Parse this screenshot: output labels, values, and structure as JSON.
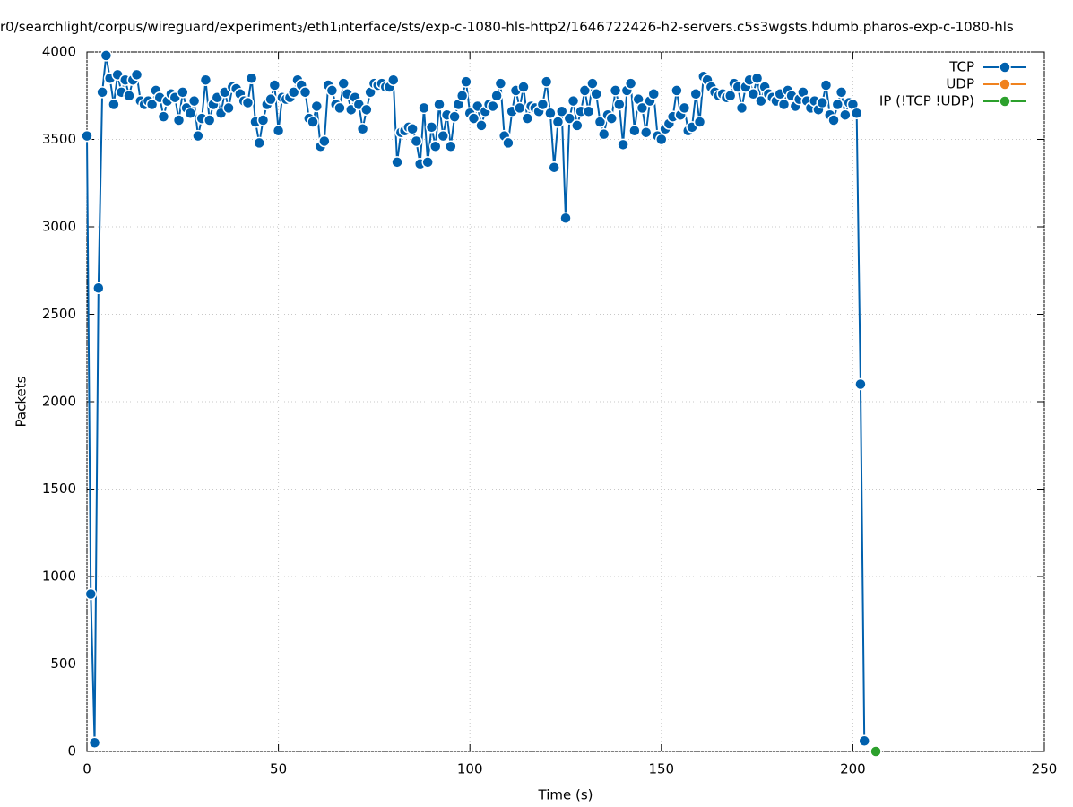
{
  "chart_data": {
    "type": "line",
    "title": [
      "r0/searchlight/corpus/wireguard/experiment",
      "3",
      "/eth1",
      "i",
      "nterface/sts/exp-c-1080-hls-http2/1646722426-h2-servers.c5s3wgsts.hdumb.pharos-exp-c-1080-hls"
    ],
    "xlabel": "Time (s)",
    "ylabel": "Packets",
    "xlim": [
      0,
      250
    ],
    "xticks": [
      0,
      50,
      100,
      150,
      200,
      250
    ],
    "ylim": [
      0,
      4000
    ],
    "yticks": [
      0,
      500,
      1000,
      1500,
      2000,
      2500,
      3000,
      3500,
      4000
    ],
    "grid": true,
    "legend": "top-right",
    "series": [
      {
        "name": "TCP",
        "color": "#0060ad",
        "x": [
          0,
          1,
          2,
          3,
          4,
          5,
          6,
          7,
          8,
          9,
          10,
          11,
          12,
          13,
          14,
          15,
          16,
          17,
          18,
          19,
          20,
          21,
          22,
          23,
          24,
          25,
          26,
          27,
          28,
          29,
          30,
          31,
          32,
          33,
          34,
          35,
          36,
          37,
          38,
          39,
          40,
          41,
          42,
          43,
          44,
          45,
          46,
          47,
          48,
          49,
          50,
          51,
          52,
          53,
          54,
          55,
          56,
          57,
          58,
          59,
          60,
          61,
          62,
          63,
          64,
          65,
          66,
          67,
          68,
          69,
          70,
          71,
          72,
          73,
          74,
          75,
          76,
          77,
          78,
          79,
          80,
          81,
          82,
          83,
          84,
          85,
          86,
          87,
          88,
          89,
          90,
          91,
          92,
          93,
          94,
          95,
          96,
          97,
          98,
          99,
          100,
          101,
          102,
          103,
          104,
          105,
          106,
          107,
          108,
          109,
          110,
          111,
          112,
          113,
          114,
          115,
          116,
          117,
          118,
          119,
          120,
          121,
          122,
          123,
          124,
          125,
          126,
          127,
          128,
          129,
          130,
          131,
          132,
          133,
          134,
          135,
          136,
          137,
          138,
          139,
          140,
          141,
          142,
          143,
          144,
          145,
          146,
          147,
          148,
          149,
          150,
          151,
          152,
          153,
          154,
          155,
          156,
          157,
          158,
          159,
          160,
          161,
          162,
          163,
          164,
          165,
          166,
          167,
          168,
          169,
          170,
          171,
          172,
          173,
          174,
          175,
          176,
          177,
          178,
          179,
          180,
          181,
          182,
          183,
          184,
          185,
          186,
          187,
          188,
          189,
          190,
          191,
          192,
          193,
          194,
          195,
          196,
          197,
          198,
          199,
          200,
          201,
          202,
          203
        ],
        "values": [
          3520,
          900,
          50,
          2650,
          3770,
          3980,
          3850,
          3700,
          3870,
          3770,
          3840,
          3750,
          3840,
          3870,
          3720,
          3700,
          3720,
          3700,
          3780,
          3740,
          3630,
          3720,
          3760,
          3740,
          3610,
          3770,
          3680,
          3650,
          3720,
          3520,
          3620,
          3840,
          3610,
          3700,
          3740,
          3650,
          3770,
          3680,
          3800,
          3790,
          3760,
          3720,
          3710,
          3850,
          3600,
          3480,
          3610,
          3700,
          3730,
          3810,
          3550,
          3740,
          3730,
          3740,
          3770,
          3840,
          3810,
          3770,
          3620,
          3600,
          3690,
          3460,
          3490,
          3810,
          3780,
          3700,
          3680,
          3820,
          3760,
          3670,
          3740,
          3700,
          3560,
          3670,
          3770,
          3820,
          3810,
          3820,
          3800,
          3800,
          3840,
          3370,
          3540,
          3550,
          3570,
          3560,
          3490,
          3360,
          3680,
          3370,
          3570,
          3460,
          3700,
          3520,
          3640,
          3460,
          3630,
          3700,
          3750,
          3830,
          3650,
          3620,
          3690,
          3580,
          3660,
          3700,
          3690,
          3750,
          3820,
          3520,
          3480,
          3660,
          3780,
          3680,
          3800,
          3620,
          3690,
          3680,
          3660,
          3700,
          3830,
          3650,
          3340,
          3600,
          3660,
          3050,
          3620,
          3720,
          3580,
          3660,
          3780,
          3660,
          3820,
          3760,
          3600,
          3530,
          3640,
          3620,
          3780,
          3700,
          3470,
          3780,
          3820,
          3550,
          3730,
          3680,
          3540,
          3720,
          3760,
          3520,
          3500,
          3560,
          3590,
          3630,
          3780,
          3640,
          3680,
          3550,
          3570,
          3760,
          3600,
          3860,
          3840,
          3800,
          3770,
          3750,
          3760,
          3740,
          3750,
          3820,
          3800,
          3680,
          3800,
          3840,
          3760,
          3850,
          3720,
          3800,
          3760,
          3740,
          3720,
          3760,
          3700,
          3780,
          3750,
          3690,
          3730,
          3770,
          3720,
          3680,
          3720,
          3670,
          3710,
          3810,
          3640,
          3610,
          3700,
          3770,
          3640,
          3710,
          3700,
          3650,
          2100,
          60
        ]
      },
      {
        "name": "UDP",
        "color": "#f0821e",
        "x": [
          206
        ],
        "values": [
          0
        ]
      },
      {
        "name": "IP (!TCP  !UDP)",
        "color": "#2ca02c",
        "x": [
          206
        ],
        "values": [
          0
        ]
      }
    ]
  }
}
